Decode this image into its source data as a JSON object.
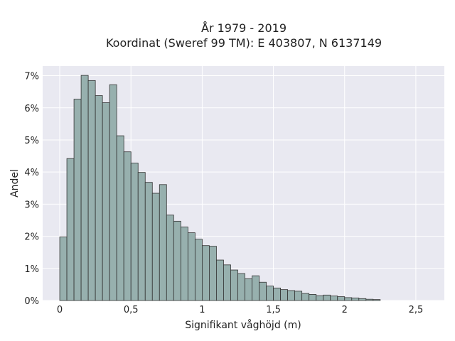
{
  "chart_data": {
    "type": "bar",
    "title_line1": "År 1979 - 2019",
    "title_line2": "Koordinat (Sweref 99 TM): E 403807, N 6137149",
    "xlabel": "Signifikant våghöjd (m)",
    "ylabel": "Andel",
    "xlim": [
      -0.12,
      2.7
    ],
    "ylim": [
      0,
      7.3
    ],
    "x_ticks": [
      0,
      0.5,
      1,
      1.5,
      2,
      2.5
    ],
    "x_tick_labels": [
      "0",
      "0,5",
      "1",
      "1,5",
      "2",
      "2,5"
    ],
    "y_ticks": [
      0,
      1,
      2,
      3,
      4,
      5,
      6,
      7
    ],
    "y_tick_labels": [
      "0%",
      "1%",
      "2%",
      "3%",
      "4%",
      "5%",
      "6%",
      "7%"
    ],
    "bin_width": 0.05,
    "bin_start": 0.0,
    "values": [
      1.98,
      4.42,
      6.27,
      7.01,
      6.85,
      6.38,
      6.16,
      6.72,
      5.13,
      4.63,
      4.28,
      3.99,
      3.68,
      3.34,
      3.61,
      2.66,
      2.47,
      2.29,
      2.11,
      1.91,
      1.71,
      1.69,
      1.26,
      1.11,
      0.95,
      0.84,
      0.68,
      0.77,
      0.57,
      0.45,
      0.39,
      0.34,
      0.31,
      0.29,
      0.22,
      0.19,
      0.15,
      0.17,
      0.14,
      0.12,
      0.09,
      0.08,
      0.06,
      0.04,
      0.03
    ],
    "grid": true,
    "colors": {
      "bar_fill": "#97b0ae",
      "bar_stroke": "#333333",
      "plot_bg": "#e9e9f1",
      "grid": "#ffffff"
    }
  }
}
